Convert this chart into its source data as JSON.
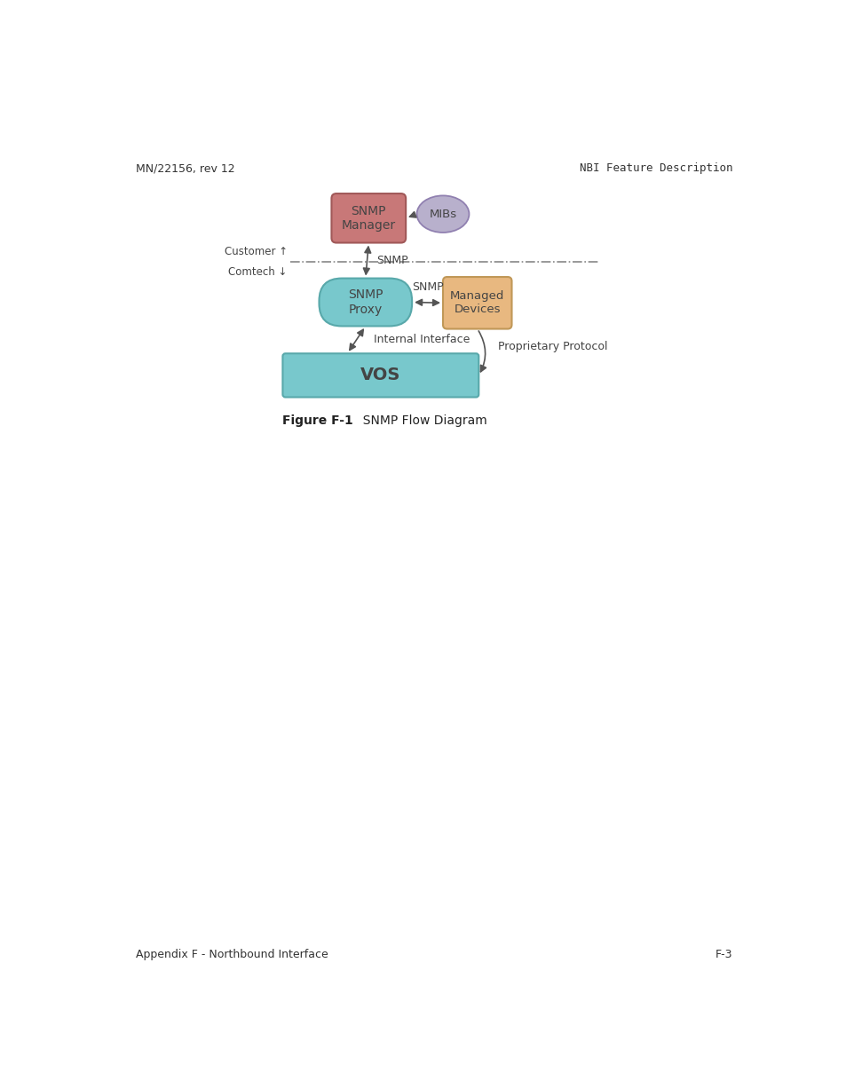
{
  "title_left": "MN/22156, rev 12",
  "title_right": "NBI Feature Description",
  "footer_left": "Appendix F - Northbound Interface",
  "footer_right": "F-3",
  "figure_caption_bold": "Figure F-1",
  "figure_caption_rest": "  SNMP Flow Diagram",
  "snmp_manager_label": "SNMP\nManager",
  "mibs_label": "MIBs",
  "snmp_proxy_label": "SNMP\nProxy",
  "managed_devices_label": "Managed\nDevices",
  "vos_label": "VOS",
  "snmp_label_top": "SNMP",
  "snmp_label_mid": "SNMP",
  "internal_interface_label": "Internal Interface",
  "proprietary_protocol_label": "Proprietary Protocol",
  "customer_label": "Customer ↑",
  "comtech_label": "Comtech ↓",
  "snmp_manager_color": "#c87878",
  "snmp_manager_edge": "#a05858",
  "mibs_color": "#b8b0cc",
  "mibs_edge": "#9080b0",
  "snmp_proxy_color": "#78c8cc",
  "snmp_proxy_edge": "#58a8aa",
  "managed_devices_color": "#e8b880",
  "managed_devices_edge": "#c09858",
  "vos_color": "#78c8cc",
  "vos_edge": "#58a8aa",
  "arrow_color": "#555555",
  "dashed_line_color": "#888888",
  "text_color": "#444444",
  "bg_color": "#ffffff"
}
